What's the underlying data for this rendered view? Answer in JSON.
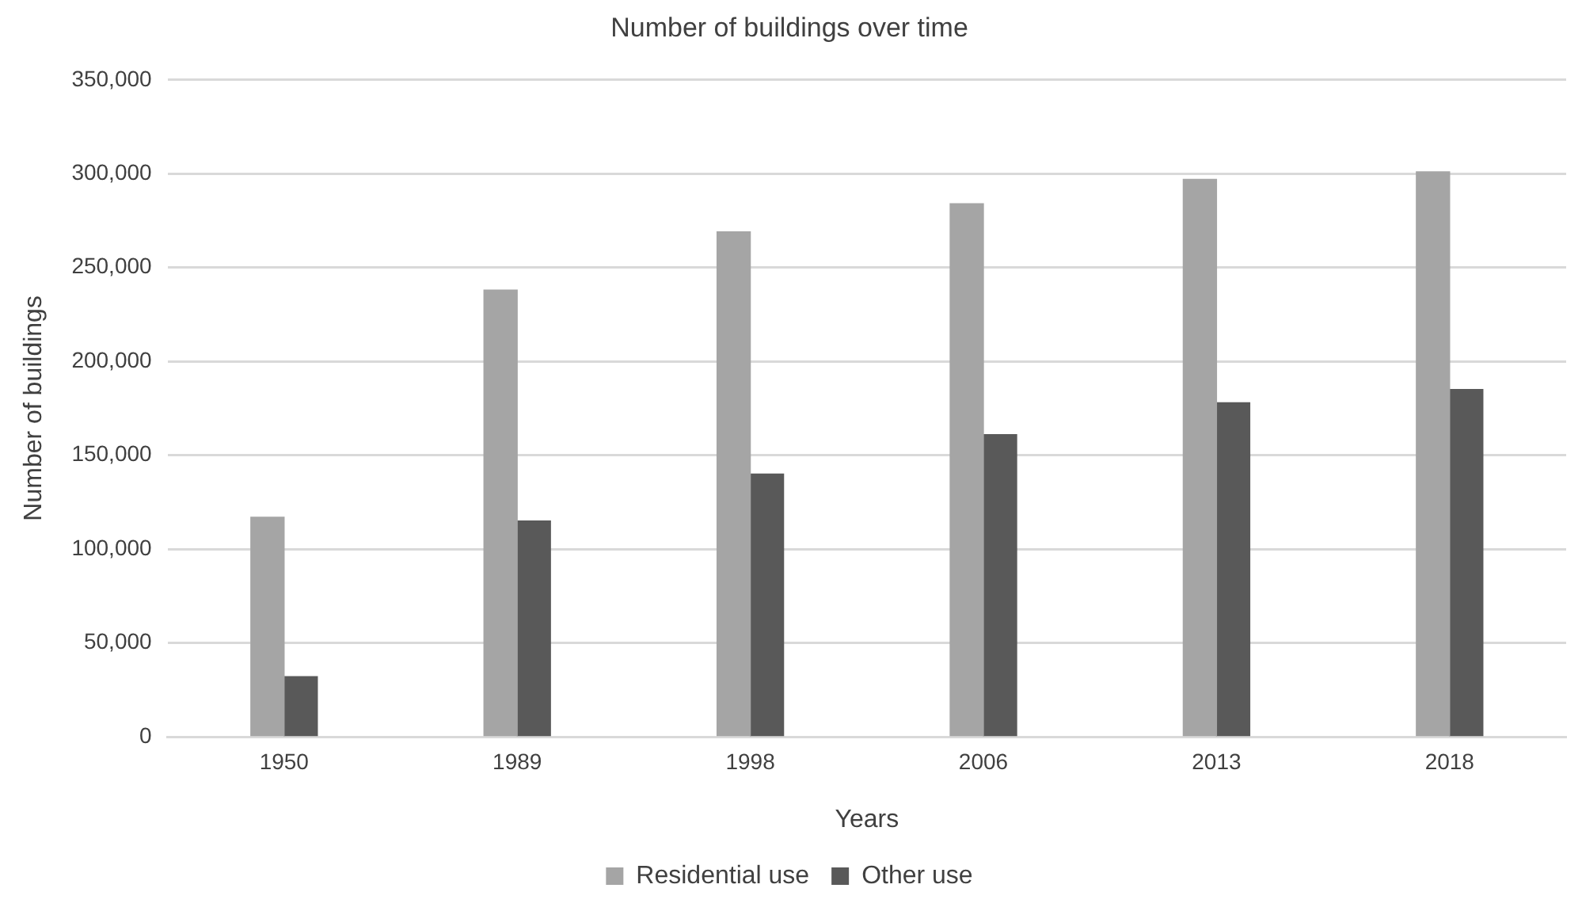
{
  "chart_data": {
    "type": "bar",
    "title": "Number of buildings over time",
    "xlabel": "Years",
    "ylabel": "Number of buildings",
    "categories": [
      "1950",
      "1989",
      "1998",
      "2006",
      "2013",
      "2018"
    ],
    "series": [
      {
        "name": "Residential use",
        "color": "#a5a5a5",
        "values": [
          117000,
          238000,
          269000,
          284000,
          297000,
          301000
        ]
      },
      {
        "name": "Other use",
        "color": "#595959",
        "values": [
          32000,
          115000,
          140000,
          161000,
          178000,
          185000
        ]
      }
    ],
    "ylim": [
      0,
      350000
    ],
    "yticks": [
      0,
      {
        "value": 50000,
        "label": "50,000"
      },
      {
        "value": 100000,
        "label": "100,000"
      },
      {
        "value": 150000,
        "label": "150,000"
      },
      {
        "value": 200000,
        "label": "200,000"
      },
      {
        "value": 250000,
        "label": "250,000"
      },
      {
        "value": 300000,
        "label": "300,000"
      },
      {
        "value": 350000,
        "label": "350,000"
      }
    ],
    "grid": "y",
    "legend": "bottom"
  }
}
